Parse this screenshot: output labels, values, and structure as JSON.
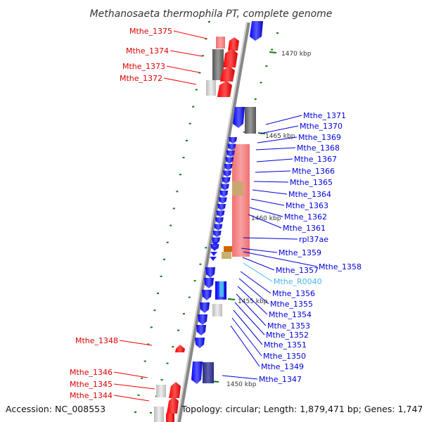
{
  "title": "Methanosaeta thermophila PT, complete genome",
  "accession": "Accession: NC_008553",
  "topology": "Topology: circular; Length: 1,879,471 bp; Genes: 1,747",
  "colors": {
    "forward_gene": "#ff0000",
    "reverse_gene": "#0000ee",
    "rna_gene": "#44bbee",
    "tick": "#117711",
    "pseudogene": "#888888",
    "operon_block": "#f08080"
  },
  "kbp_labels": [
    "1470 kbp",
    "1465 kbp",
    "1460 kbp",
    "1455 kbp",
    "1450 kbp"
  ],
  "left_labels": [
    "Mthe_1375",
    "Mthe_1374",
    "Mthe_1373",
    "Mthe_1372",
    "Mthe_1348",
    "Mthe_1346",
    "Mthe_1345",
    "Mthe_1344"
  ],
  "right_labels": [
    "Mthe_1371",
    "Mthe_1370",
    "Mthe_1369",
    "Mthe_1368",
    "Mthe_1367",
    "Mthe_1366",
    "Mthe_1365",
    "Mthe_1364",
    "Mthe_1363",
    "Mthe_1362",
    "Mthe_1361",
    "rpl37ae",
    "Mthe_1359",
    "Mthe_1358",
    "Mthe_1357",
    "Mthe_R0040",
    "Mthe_1356",
    "Mthe_1355",
    "Mthe_1354",
    "Mthe_1353",
    "Mthe_1352",
    "Mthe_1351",
    "Mthe_1350",
    "Mthe_1349",
    "Mthe_1347"
  ]
}
